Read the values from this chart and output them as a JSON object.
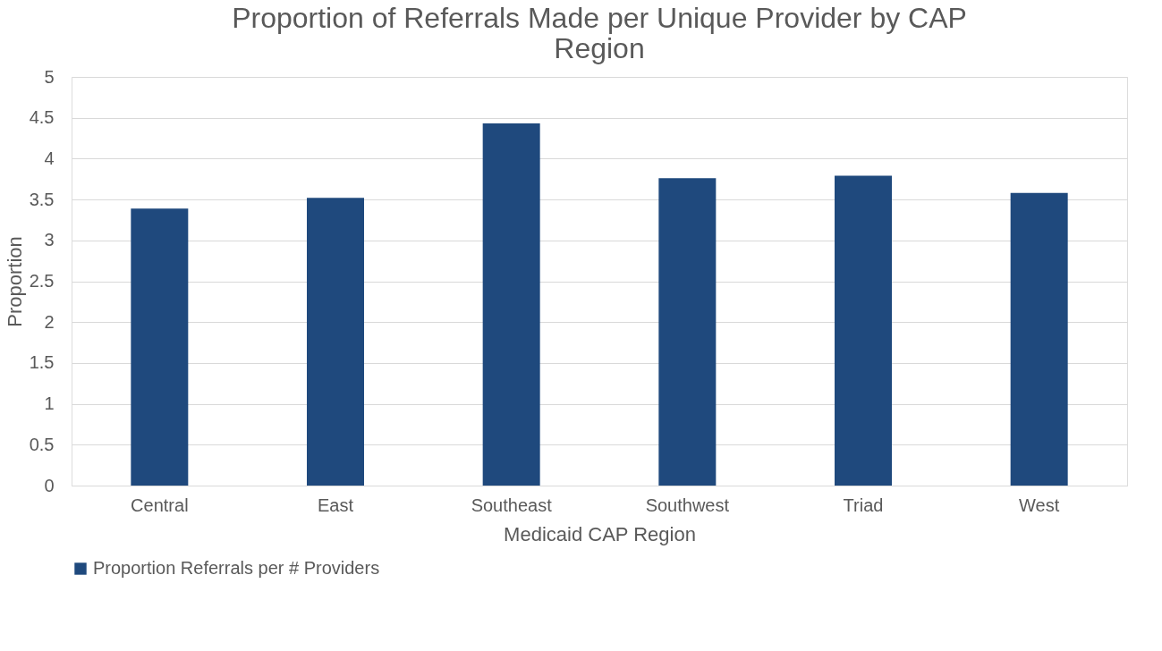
{
  "chart_data": {
    "type": "bar",
    "title": [
      "Proportion of Referrals Made per Unique Provider by CAP",
      "Region"
    ],
    "xlabel": "Medicaid CAP Region",
    "ylabel": "Proportion",
    "categories": [
      "Central",
      "East",
      "Southeast",
      "Southwest",
      "Triad",
      "West"
    ],
    "series": [
      {
        "name": "Proportion Referrals per # Providers",
        "color": "#1f497d",
        "values": [
          3.39,
          3.52,
          4.43,
          3.76,
          3.79,
          3.58
        ]
      }
    ],
    "ylim": [
      0,
      5
    ],
    "yticks": [
      0,
      0.5,
      1,
      1.5,
      2,
      2.5,
      3,
      3.5,
      4,
      4.5,
      5
    ],
    "grid": "y",
    "legend": "bottom"
  }
}
